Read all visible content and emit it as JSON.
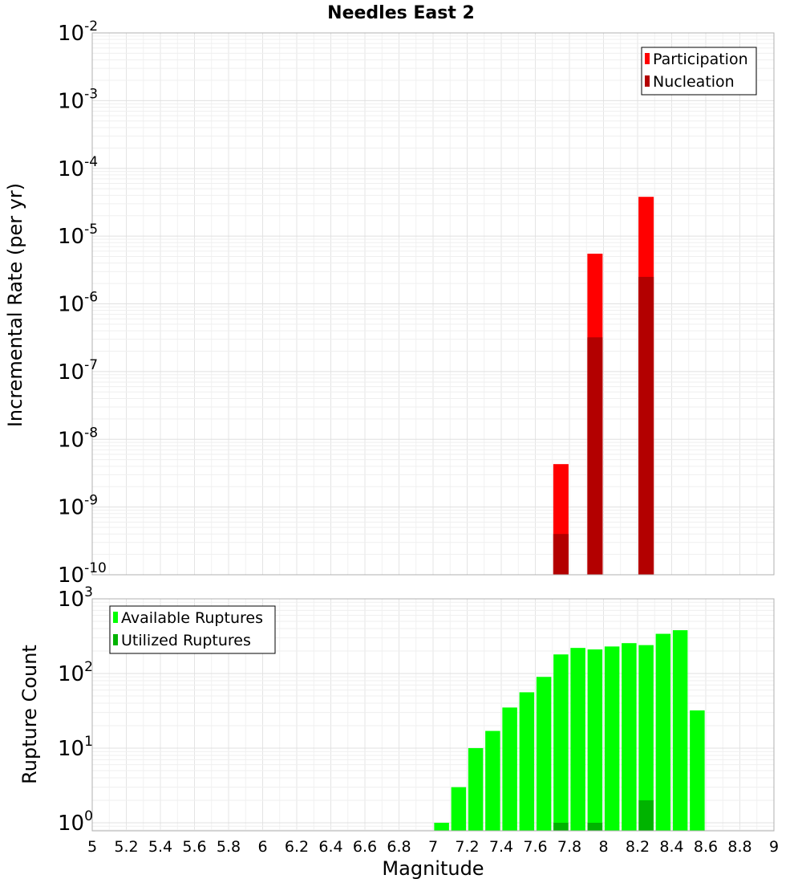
{
  "chart_data": [
    {
      "type": "bar",
      "title": "Needles East 2",
      "xlabel": "",
      "ylabel": "Incremental Rate (per yr)",
      "yscale": "log",
      "xlim": [
        5,
        9
      ],
      "ylim": [
        1e-10,
        0.01
      ],
      "ytick_exponents": [
        -10,
        -9,
        -8,
        -7,
        -6,
        -5,
        -4,
        -3,
        -2
      ],
      "grid": true,
      "legend_position": "top-right",
      "series": [
        {
          "name": "Participation",
          "color": "#ff0000",
          "x": [
            7.75,
            7.95,
            8.25
          ],
          "values": [
            4.3e-09,
            5.5e-06,
            3.8e-05
          ]
        },
        {
          "name": "Nucleation",
          "color": "#b30000",
          "x": [
            7.75,
            7.95,
            8.25
          ],
          "values": [
            4e-10,
            3.2e-07,
            2.5e-06
          ]
        }
      ]
    },
    {
      "type": "bar",
      "title": "",
      "xlabel": "Magnitude",
      "ylabel": "Rupture Count",
      "yscale": "log",
      "xlim": [
        5,
        9
      ],
      "ylim": [
        0.78,
        1000
      ],
      "ytick_exponents": [
        0,
        1,
        2,
        3
      ],
      "xticks": [
        "5",
        "5.2",
        "5.4",
        "5.6",
        "5.8",
        "6",
        "6.2",
        "6.4",
        "6.6",
        "6.8",
        "7",
        "7.2",
        "7.4",
        "7.6",
        "7.8",
        "8",
        "8.2",
        "8.4",
        "8.6",
        "8.8",
        "9"
      ],
      "grid": true,
      "legend_position": "top-left",
      "series": [
        {
          "name": "Available Ruptures",
          "color": "#00ff00",
          "x": [
            7.05,
            7.15,
            7.25,
            7.35,
            7.45,
            7.55,
            7.65,
            7.75,
            7.85,
            7.95,
            8.05,
            8.15,
            8.25,
            8.35,
            8.45,
            8.55
          ],
          "values": [
            1,
            3,
            10,
            17,
            35,
            56,
            90,
            180,
            220,
            210,
            230,
            255,
            240,
            340,
            380,
            32
          ]
        },
        {
          "name": "Utilized Ruptures",
          "color": "#00b300",
          "x": [
            7.75,
            7.95,
            8.25
          ],
          "values": [
            1,
            1,
            2
          ]
        }
      ]
    }
  ]
}
